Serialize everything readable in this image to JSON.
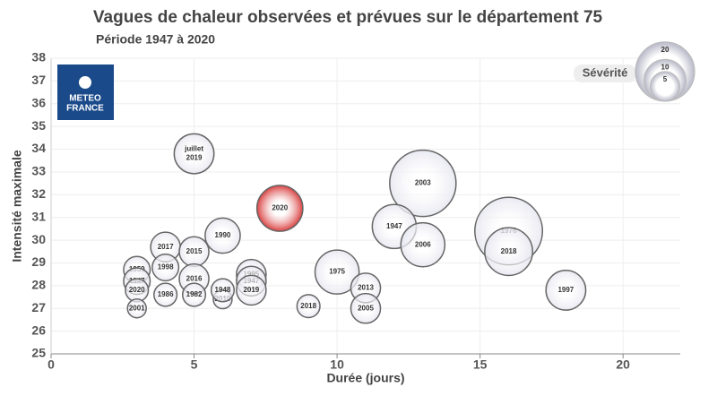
{
  "chart_data": {
    "type": "bubble",
    "title": "Vagues de chaleur observées et prévues sur le département 75",
    "subtitle": "Période 1947 à 2020",
    "logo": [
      "METEO",
      "FRANCE"
    ],
    "xlabel": "Durée (jours)",
    "ylabel": "Intensité maximale",
    "xlim": [
      0,
      22
    ],
    "xticks": [
      0,
      5,
      10,
      15,
      20
    ],
    "ylim": [
      25,
      38
    ],
    "yticks": [
      25,
      26,
      27,
      28,
      29,
      30,
      31,
      32,
      33,
      34,
      35,
      36,
      37,
      38
    ],
    "grid": true,
    "series": [
      {
        "x": [
          5,
          8,
          6,
          13,
          12,
          13,
          16,
          16,
          18,
          10,
          11,
          11,
          9,
          4,
          5,
          4,
          3,
          3,
          3,
          3,
          4,
          5,
          5,
          6,
          6,
          7,
          7,
          7
        ],
        "values": [
          33.8,
          31.4,
          30.2,
          32.5,
          30.6,
          29.8,
          30.4,
          29.5,
          27.8,
          28.6,
          27.9,
          27,
          27.1,
          29.7,
          29.5,
          28.8,
          28.7,
          28.2,
          27.8,
          27,
          27.6,
          28.3,
          27.6,
          27.4,
          27.8,
          28.5,
          28.2,
          27.8
        ],
        "sizes": [
          9,
          12,
          7,
          25,
          11,
          11,
          26,
          13,
          9,
          11,
          5,
          5,
          3,
          5,
          5,
          4,
          4,
          4,
          3,
          2,
          3,
          5,
          3,
          2,
          3,
          5,
          5,
          5
        ],
        "labels": [
          [
            "juillet",
            "2019"
          ],
          "2020",
          "1990",
          "2003",
          "1947",
          "2006",
          "1976",
          "2018",
          "1997",
          "1975",
          "2013",
          "2005",
          "2018",
          "2017",
          "2015",
          "1998",
          "1959",
          "1947",
          "2020",
          "2001",
          "1986",
          "2016",
          "1982",
          "2010",
          "1948",
          "1995",
          "1947",
          "2019"
        ],
        "colors": [
          "#e6e6f0",
          "#d42020",
          "#e6e6f0",
          "#e6e6f0",
          "#e6e6f0",
          "#e6e6f0",
          "#e6e6f0",
          "#e6e6f0",
          "#e6e6f0",
          "#e6e6f0",
          "#e6e6f0",
          "#e6e6f0",
          "#e6e6f0",
          "#e6e6f0",
          "#e6e6f0",
          "#e6e6f0",
          "#e6e6f0",
          "#e6e6f0",
          "#e6e6f0",
          "#e6e6f0",
          "#e6e6f0",
          "#e6e6f0",
          "#e6e6f0",
          "#e6e6f0",
          "#e6e6f0",
          "#e6e6f0",
          "#e6e6f0",
          "#e6e6f0"
        ]
      }
    ],
    "legend": {
      "title": "Sévérité",
      "position": "upper right",
      "sizes": [
        20,
        10,
        5
      ]
    }
  }
}
